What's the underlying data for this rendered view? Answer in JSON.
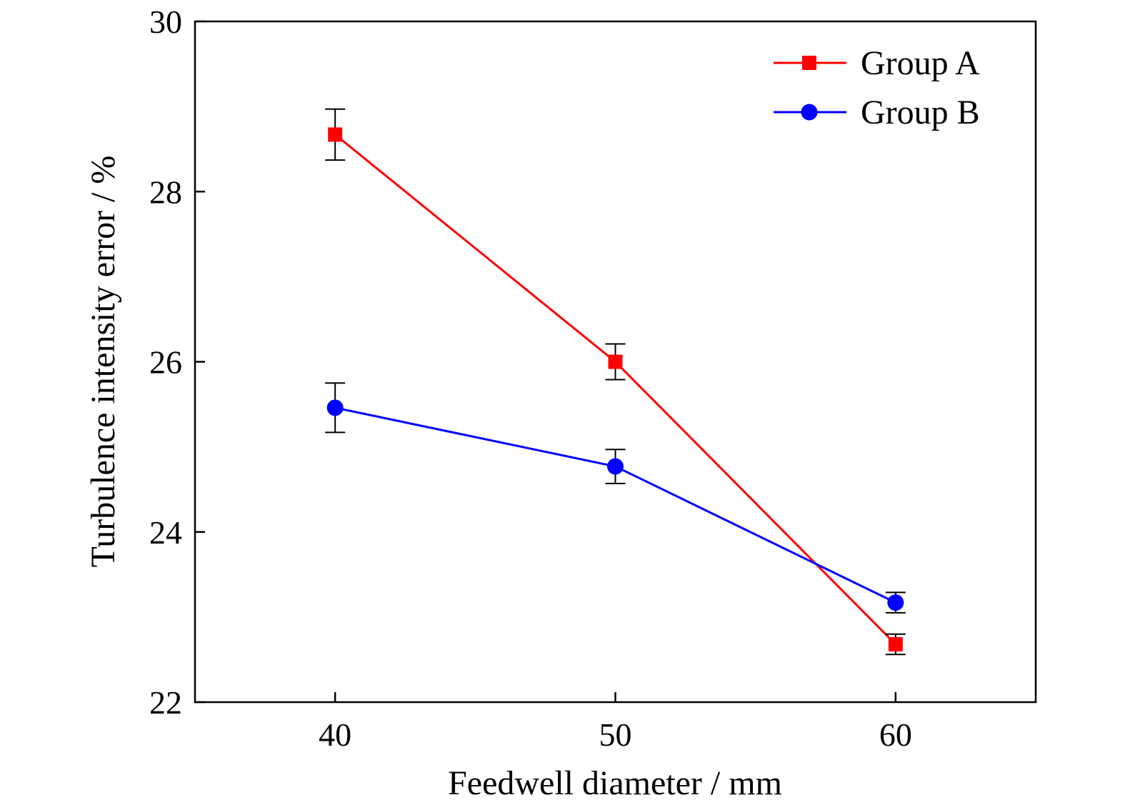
{
  "chart_data": {
    "type": "line",
    "xlabel": "Feedwell diameter / mm",
    "ylabel": "Turbulence intensity error / %",
    "x": [
      40,
      50,
      60
    ],
    "xlim": [
      35,
      65
    ],
    "ylim": [
      22,
      30
    ],
    "x_ticks": [
      40,
      50,
      60
    ],
    "y_ticks": [
      22,
      24,
      26,
      28,
      30
    ],
    "grid": false,
    "legend_position": "top-right",
    "series": [
      {
        "name": "Group A",
        "color": "#ff0000",
        "marker": "square",
        "values": [
          28.67,
          26.0,
          22.68
        ],
        "errors": [
          0.3,
          0.21,
          0.12
        ]
      },
      {
        "name": "Group B",
        "color": "#0000ff",
        "marker": "circle",
        "values": [
          25.46,
          24.77,
          23.17
        ],
        "errors": [
          0.29,
          0.2,
          0.12
        ]
      }
    ]
  }
}
